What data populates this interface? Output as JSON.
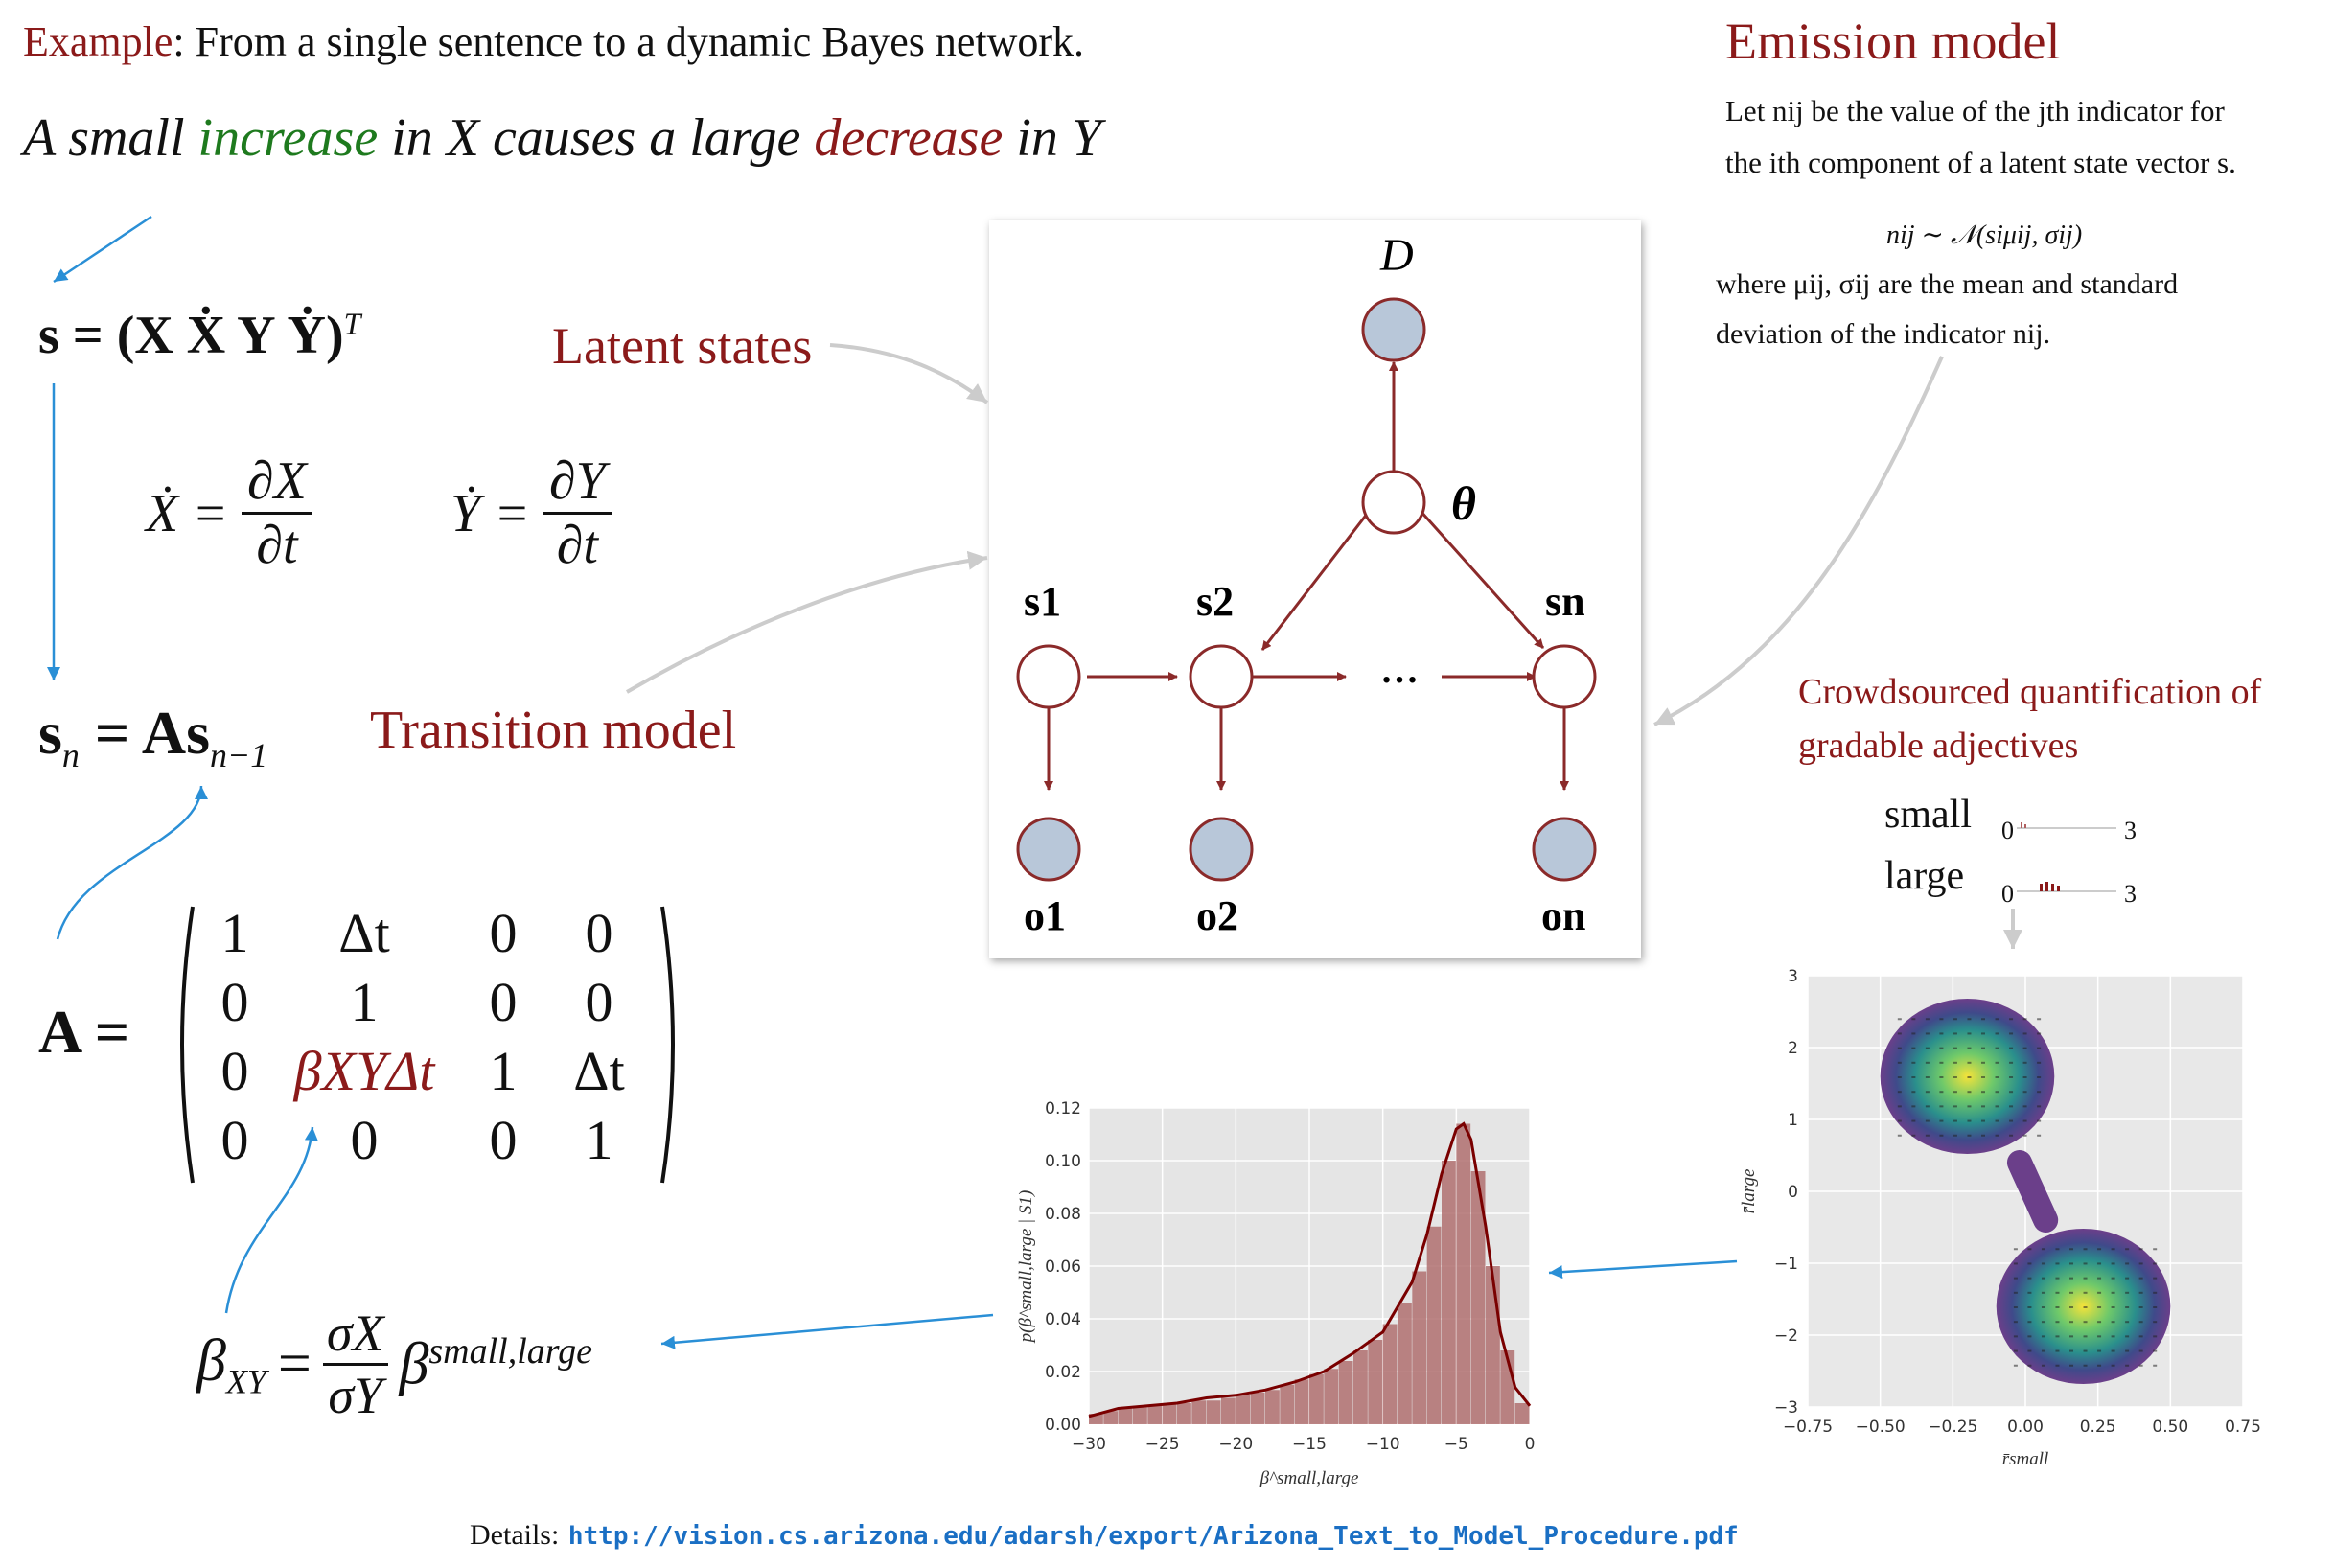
{
  "header": {
    "example_label": "Example",
    "example_text": ": From a single sentence to a dynamic Bayes network.",
    "sentence": {
      "part1": "A small ",
      "increase": "increase",
      "part2": " in X causes a large ",
      "decrease": "decrease",
      "part3": " in Y"
    }
  },
  "labels": {
    "latent_states": "Latent states",
    "transition_model": "Transition model",
    "emission_model": "Emission model",
    "crowdsourced_line1": "Crowdsourced quantification of",
    "crowdsourced_line2": "gradable adjectives"
  },
  "equations": {
    "state_vector": "s = (X  Ẋ  Y  Ẏ)",
    "transpose": "T",
    "xdot": "Ẋ =",
    "ydot": "Ẏ =",
    "partial_x": "∂X",
    "partial_y": "∂Y",
    "partial_t": "∂t",
    "transition_lhs": "s",
    "transition_sub_n": "n",
    "transition_eq": "= As",
    "transition_sub_n1": "n−1",
    "A_label": "A =",
    "matrix": [
      [
        "1",
        "Δt",
        "0",
        "0"
      ],
      [
        "0",
        "1",
        "0",
        "0"
      ],
      [
        "0",
        "βXYΔt",
        "1",
        "Δt"
      ],
      [
        "0",
        "0",
        "0",
        "1"
      ]
    ],
    "beta_lhs": "β",
    "beta_sub": "XY",
    "beta_eq": "=",
    "sigma_x": "σX",
    "sigma_y": "σY",
    "beta_rhs": "β",
    "beta_sup": "small,large"
  },
  "emission": {
    "line1": "Let nij be the value of the jth indicator for",
    "line2": "the ith component of a latent state vector s.",
    "formula": "nij ∼ 𝒩(siμij, σij)",
    "line3": "where μij, σij are the mean and standard",
    "line4": "deviation of the indicator nij."
  },
  "network": {
    "top_node": "D",
    "theta": "θ",
    "s_nodes": [
      "s1",
      "s2",
      "sn"
    ],
    "o_nodes": [
      "o1",
      "o2",
      "on"
    ],
    "ellipsis": "…",
    "node_fill_observed": "#b8c7d9",
    "edge_color": "#8b2a2a"
  },
  "adjectives": {
    "small_label": "small",
    "large_label": "large",
    "range_min": "0",
    "range_max": "3"
  },
  "chart_data": [
    {
      "type": "bar",
      "xlabel": "β^small,large",
      "ylabel": "p(β^small,large | S1)",
      "xlim": [
        -30,
        0
      ],
      "ylim": [
        0,
        0.12
      ],
      "xticks": [
        "−30",
        "−25",
        "−20",
        "−15",
        "−10",
        "−5",
        "0"
      ],
      "yticks": [
        "0.00",
        "0.02",
        "0.04",
        "0.06",
        "0.08",
        "0.10",
        "0.12"
      ],
      "bins": [
        -30,
        -29,
        -28,
        -27,
        -26,
        -25,
        -24,
        -23,
        -22,
        -21,
        -20,
        -19,
        -18,
        -17,
        -16,
        -15,
        -14,
        -13,
        -12,
        -11,
        -10,
        -9,
        -8,
        -7,
        -6,
        -5,
        -4,
        -3,
        -2,
        -1
      ],
      "values": [
        0.004,
        0.005,
        0.006,
        0.007,
        0.007,
        0.008,
        0.008,
        0.009,
        0.009,
        0.01,
        0.011,
        0.012,
        0.013,
        0.015,
        0.017,
        0.019,
        0.021,
        0.024,
        0.028,
        0.032,
        0.038,
        0.046,
        0.058,
        0.075,
        0.1,
        0.114,
        0.096,
        0.06,
        0.028,
        0.008
      ],
      "kde": [
        [
          -30,
          0.003
        ],
        [
          -28,
          0.006
        ],
        [
          -26,
          0.007
        ],
        [
          -24,
          0.008
        ],
        [
          -22,
          0.01
        ],
        [
          -20,
          0.011
        ],
        [
          -18,
          0.013
        ],
        [
          -16,
          0.016
        ],
        [
          -14,
          0.02
        ],
        [
          -12,
          0.027
        ],
        [
          -10,
          0.035
        ],
        [
          -8,
          0.054
        ],
        [
          -7,
          0.072
        ],
        [
          -6,
          0.095
        ],
        [
          -5,
          0.112
        ],
        [
          -4.5,
          0.114
        ],
        [
          -4,
          0.108
        ],
        [
          -3,
          0.075
        ],
        [
          -2,
          0.035
        ],
        [
          -1,
          0.014
        ],
        [
          0,
          0.007
        ]
      ],
      "bar_color": "#b07070",
      "line_color": "#7a0000",
      "grid": true
    },
    {
      "type": "scatter",
      "xlabel": "r̄small",
      "ylabel": "r̄large",
      "xlim": [
        -0.75,
        0.75
      ],
      "ylim": [
        -3,
        3
      ],
      "xticks": [
        "−0.75",
        "−0.50",
        "−0.25",
        "0.00",
        "0.25",
        "0.50",
        "0.75"
      ],
      "yticks": [
        "−3",
        "−2",
        "−1",
        "0",
        "1",
        "2",
        "3"
      ],
      "clusters": [
        {
          "center_x": -0.2,
          "center_y": 1.6,
          "spread_x": 0.3,
          "spread_y": 0.9
        },
        {
          "center_x": 0.2,
          "center_y": -1.6,
          "spread_x": 0.3,
          "spread_y": 0.9
        }
      ],
      "grid": true
    }
  ],
  "footer": {
    "details_label": "Details:",
    "url": "http://vision.cs.arizona.edu/adarsh/export/Arizona_Text_to_Model_Procedure.pdf"
  }
}
